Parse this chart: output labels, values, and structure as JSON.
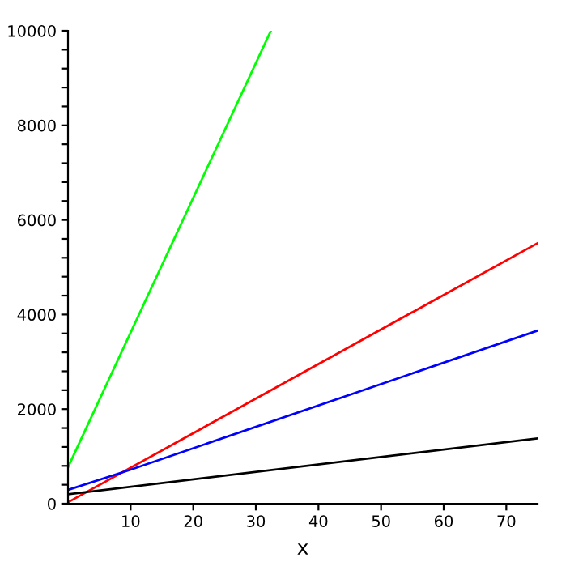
{
  "chart_data": {
    "type": "line",
    "xlabel": "x",
    "series": [
      {
        "color": "#00ff00",
        "x": [
          0,
          32.4
        ],
        "values": [
          770,
          10000
        ]
      },
      {
        "color": "#ff0000",
        "x": [
          0,
          75
        ],
        "values": [
          30,
          5510
        ]
      },
      {
        "color": "#0000ff",
        "x": [
          0,
          10,
          75
        ],
        "values": [
          290,
          720,
          3660
        ]
      },
      {
        "color": "#000000",
        "x": [
          0,
          75
        ],
        "values": [
          200,
          1380
        ]
      }
    ],
    "xlim": [
      0,
      75
    ],
    "ylim": [
      0,
      10000
    ],
    "xticks": [
      10,
      20,
      30,
      40,
      50,
      60,
      70
    ],
    "yticks": [
      0,
      {
        "value": 400,
        "label": null
      },
      {
        "value": 800,
        "label": null
      },
      {
        "value": 1200,
        "label": null
      },
      {
        "value": 1600,
        "label": null
      },
      2000,
      {
        "value": 2400,
        "label": null
      },
      {
        "value": 2800,
        "label": null
      },
      {
        "value": 3200,
        "label": null
      },
      {
        "value": 3600,
        "label": null
      },
      4000,
      {
        "value": 4400,
        "label": null
      },
      {
        "value": 4800,
        "label": null
      },
      {
        "value": 5200,
        "label": null
      },
      {
        "value": 5600,
        "label": null
      },
      6000,
      {
        "value": 6400,
        "label": null
      },
      {
        "value": 6800,
        "label": null
      },
      {
        "value": 7200,
        "label": null
      },
      {
        "value": 7600,
        "label": null
      },
      8000,
      {
        "value": 8400,
        "label": null
      },
      {
        "value": 8800,
        "label": null
      },
      {
        "value": 9200,
        "label": null
      },
      {
        "value": 9600,
        "label": null
      },
      10000
    ],
    "grid": false,
    "legend": false
  }
}
